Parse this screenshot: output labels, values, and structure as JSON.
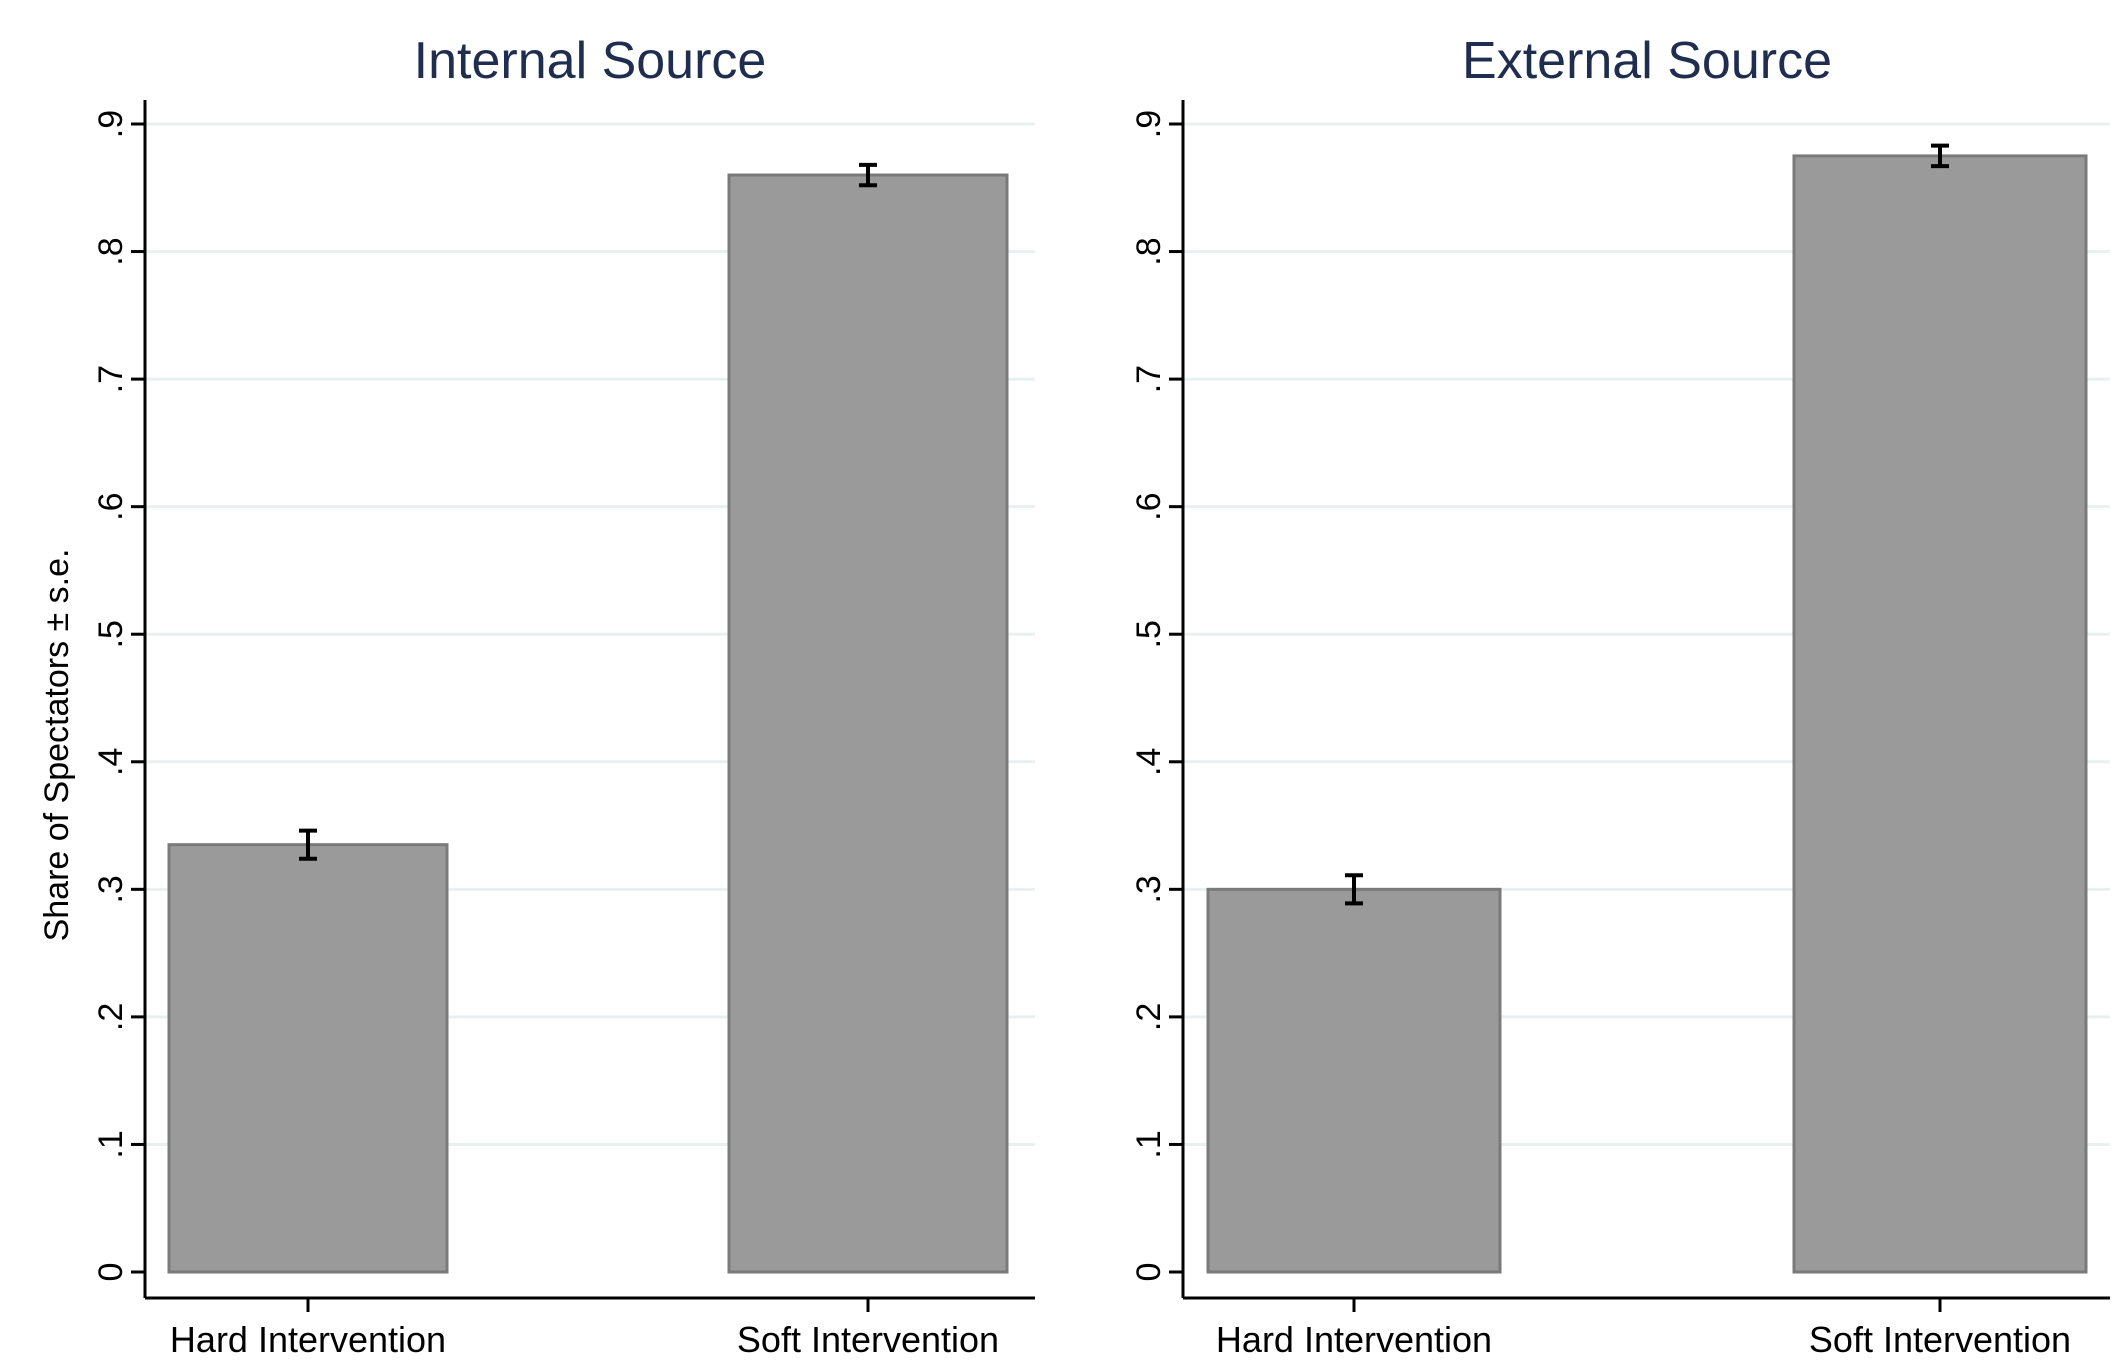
{
  "colors": {
    "bar_fill": "#9a9a9a",
    "bar_edge": "#7a7a7a",
    "title": "#1f2d4e",
    "gridline": "#eaf0f0"
  },
  "chart_data": [
    {
      "type": "bar",
      "title": "Internal Source",
      "ylabel": "Share of Spectators ± s.e.",
      "xlabel": "",
      "ylim": [
        0,
        0.9
      ],
      "yticks": [
        0,
        0.1,
        0.2,
        0.3,
        0.4,
        0.5,
        0.6,
        0.7,
        0.8,
        0.9
      ],
      "ytick_labels": [
        "0",
        ".1",
        ".2",
        ".3",
        ".4",
        ".5",
        ".6",
        ".7",
        ".8",
        ".9"
      ],
      "grid": true,
      "categories": [
        "Hard Intervention",
        "Soft Intervention"
      ],
      "values": [
        0.335,
        0.86
      ],
      "errors": [
        0.011,
        0.008
      ]
    },
    {
      "type": "bar",
      "title": "External Source",
      "ylabel": "",
      "xlabel": "",
      "ylim": [
        0,
        0.9
      ],
      "yticks": [
        0,
        0.1,
        0.2,
        0.3,
        0.4,
        0.5,
        0.6,
        0.7,
        0.8,
        0.9
      ],
      "ytick_labels": [
        "0",
        ".1",
        ".2",
        ".3",
        ".4",
        ".5",
        ".6",
        ".7",
        ".8",
        ".9"
      ],
      "grid": true,
      "categories": [
        "Hard Intervention",
        "Soft Intervention"
      ],
      "values": [
        0.3,
        0.875
      ],
      "errors": [
        0.011,
        0.008
      ]
    }
  ]
}
